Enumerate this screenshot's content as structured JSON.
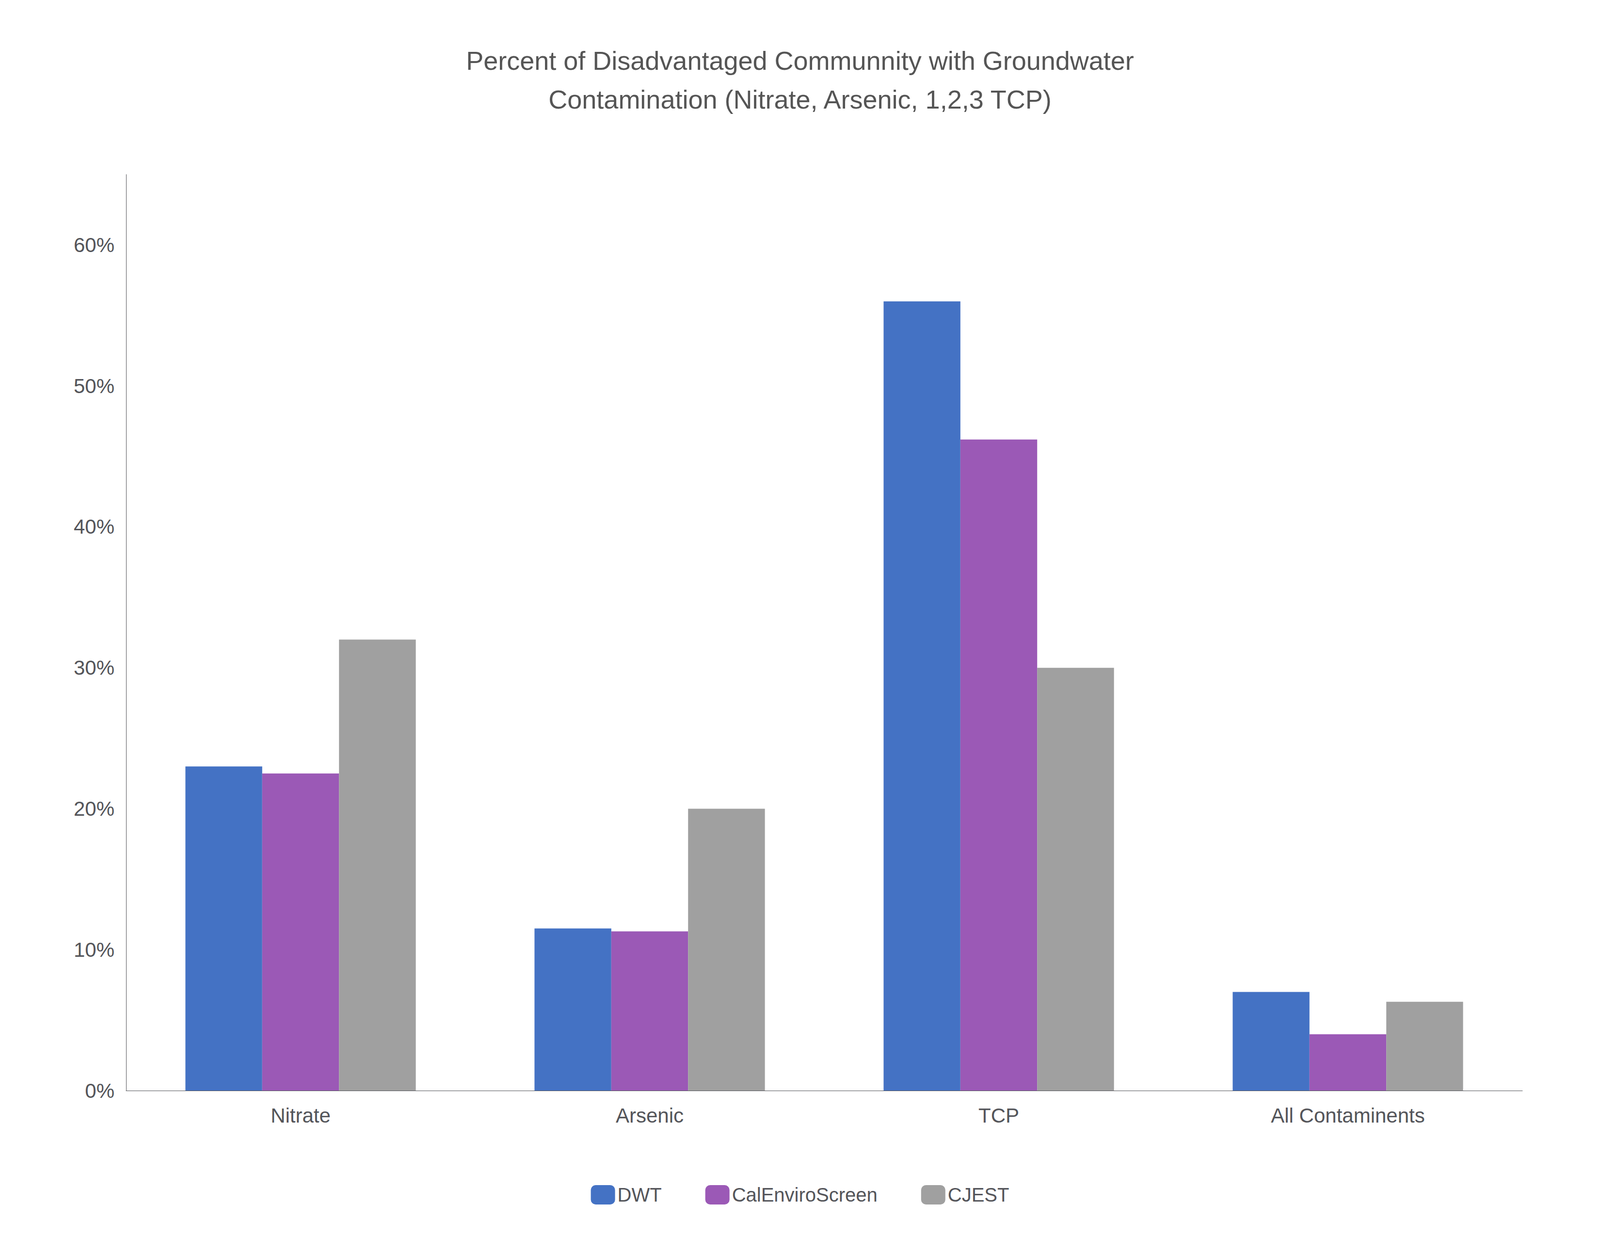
{
  "chart_data": {
    "type": "bar",
    "title": "Percent of Disadvantaged Communnity with Groundwater\nContamination (Nitrate, Arsenic, 1,2,3 TCP)",
    "categories": [
      "Nitrate",
      "Arsenic",
      "TCP",
      "All Contaminents"
    ],
    "series": [
      {
        "name": "DWT",
        "color": "#4472C4",
        "values": [
          0.23,
          0.115,
          0.56,
          0.07
        ]
      },
      {
        "name": "CalEnviroScreen",
        "color": "#9B59B6",
        "values": [
          0.225,
          0.113,
          0.462,
          0.04
        ]
      },
      {
        "name": "CJEST",
        "color": "#A0A0A0",
        "values": [
          0.32,
          0.2,
          0.3,
          0.063
        ]
      }
    ],
    "ylim": [
      0,
      0.65
    ],
    "yticks": [
      {
        "value": 0.0,
        "label": "0%"
      },
      {
        "value": 0.1,
        "label": "10%"
      },
      {
        "value": 0.2,
        "label": "20%"
      },
      {
        "value": 0.3,
        "label": "30%"
      },
      {
        "value": 0.4,
        "label": "40%"
      },
      {
        "value": 0.5,
        "label": "50%"
      },
      {
        "value": 0.6,
        "label": "60%"
      }
    ],
    "grid": false,
    "legend": "bottom"
  }
}
